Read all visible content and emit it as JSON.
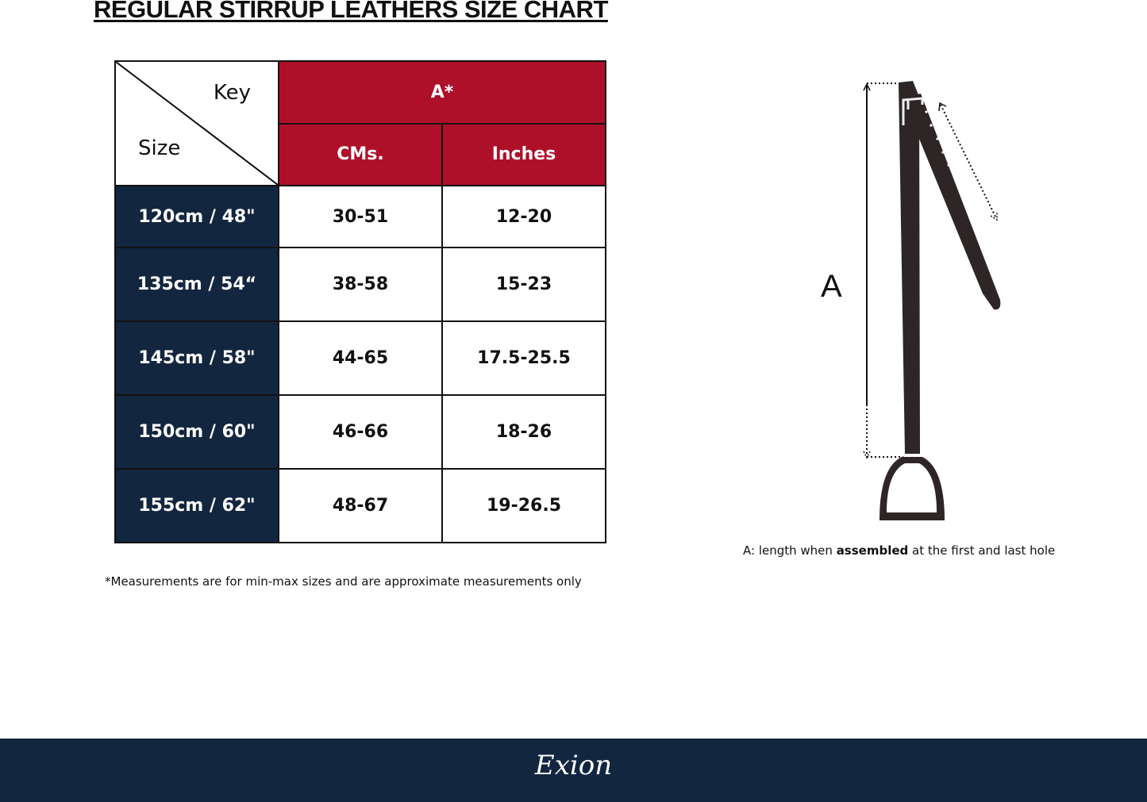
{
  "title": "REGULAR STIRRUP LEATHERS  SIZE CHART",
  "table": {
    "corner_key": "Key",
    "corner_size": "Size",
    "group_header": "A*",
    "columns": [
      "CMs.",
      "Inches"
    ],
    "rows": [
      {
        "size": "120cm / 48\"",
        "cms": "30-51",
        "inches": "12-20"
      },
      {
        "size": "135cm / 54“",
        "cms": "38-58",
        "inches": "15-23"
      },
      {
        "size": "145cm / 58\"",
        "cms": "44-65",
        "inches": "17.5-25.5"
      },
      {
        "size": "150cm / 60\"",
        "cms": "46-66",
        "inches": "18-26"
      },
      {
        "size": "155cm / 62\"",
        "cms": "48-67",
        "inches": "19-26.5"
      }
    ]
  },
  "note": "*Measurements are for min-max sizes and are approximate measurements only",
  "diagram": {
    "label": "A",
    "caption_prefix": "A: length when ",
    "caption_bold": "assembled",
    "caption_suffix": " at the first and last hole"
  },
  "footer": {
    "logo": "Exion"
  },
  "colors": {
    "header_red": "#ae1029",
    "navy": "#13263f",
    "leather": "#2e2626"
  }
}
